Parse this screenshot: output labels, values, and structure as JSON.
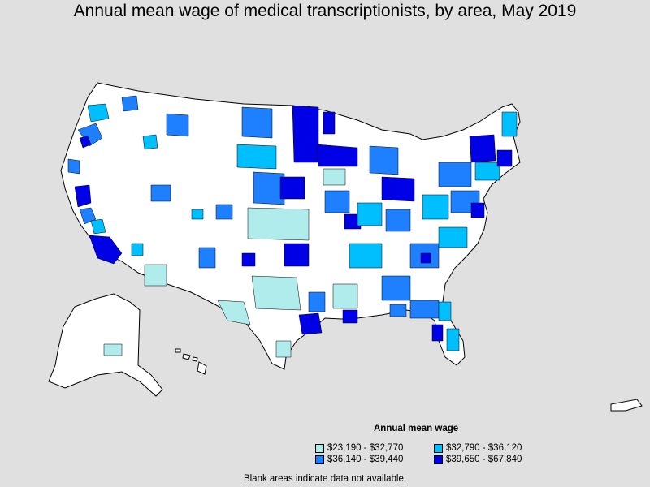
{
  "title": "Annual mean wage of medical transcriptionists, by area, May 2019",
  "legend": {
    "title": "Annual mean wage",
    "items": [
      {
        "label": "$23,190 - $32,770",
        "color": "#b0ecec"
      },
      {
        "label": "$32,790 - $36,120",
        "color": "#00bfff"
      },
      {
        "label": "$36,140 - $39,440",
        "color": "#1e80ff"
      },
      {
        "label": "$39,650 - $67,840",
        "color": "#0000e6"
      }
    ]
  },
  "footnote": "Blank areas indicate data not available.",
  "colors": {
    "background": "#e0e0e0",
    "land_blank": "#ffffff",
    "border": "#000000"
  }
}
